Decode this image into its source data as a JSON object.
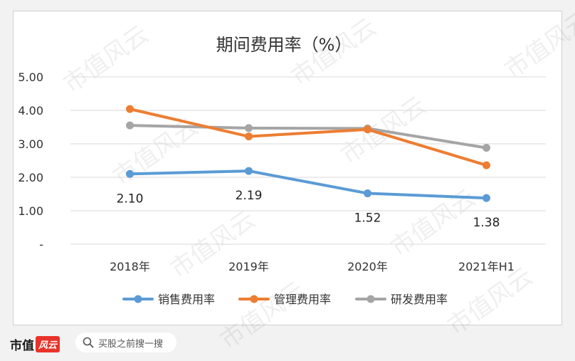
{
  "chart_data": {
    "type": "line",
    "title": "期间费用率（%）",
    "categories": [
      "2018年",
      "2019年",
      "2020年",
      "2021年H1"
    ],
    "y_tick_labels": [
      "-",
      "1.00",
      "2.00",
      "3.00",
      "4.00",
      "5.00"
    ],
    "ylim": [
      0,
      5
    ],
    "grid": true,
    "legend_position": "bottom",
    "series": [
      {
        "name": "销售费用率",
        "values": [
          2.1,
          2.19,
          1.52,
          1.38
        ],
        "color": "#5b9bd5",
        "data_labels": [
          "2.10",
          "2.19",
          "1.52",
          "1.38"
        ]
      },
      {
        "name": "管理费用率",
        "values": [
          4.04,
          3.22,
          3.43,
          2.36
        ],
        "color": "#ed7d31"
      },
      {
        "name": "研发费用率",
        "values": [
          3.55,
          3.47,
          3.46,
          2.88
        ],
        "color": "#a5a5a5"
      }
    ]
  },
  "watermark": {
    "text": "市值风云"
  },
  "footer": {
    "logo_text": "市值",
    "logo_badge": "风云",
    "search_icon": "search-icon",
    "search_label": "买股之前搜一搜"
  }
}
